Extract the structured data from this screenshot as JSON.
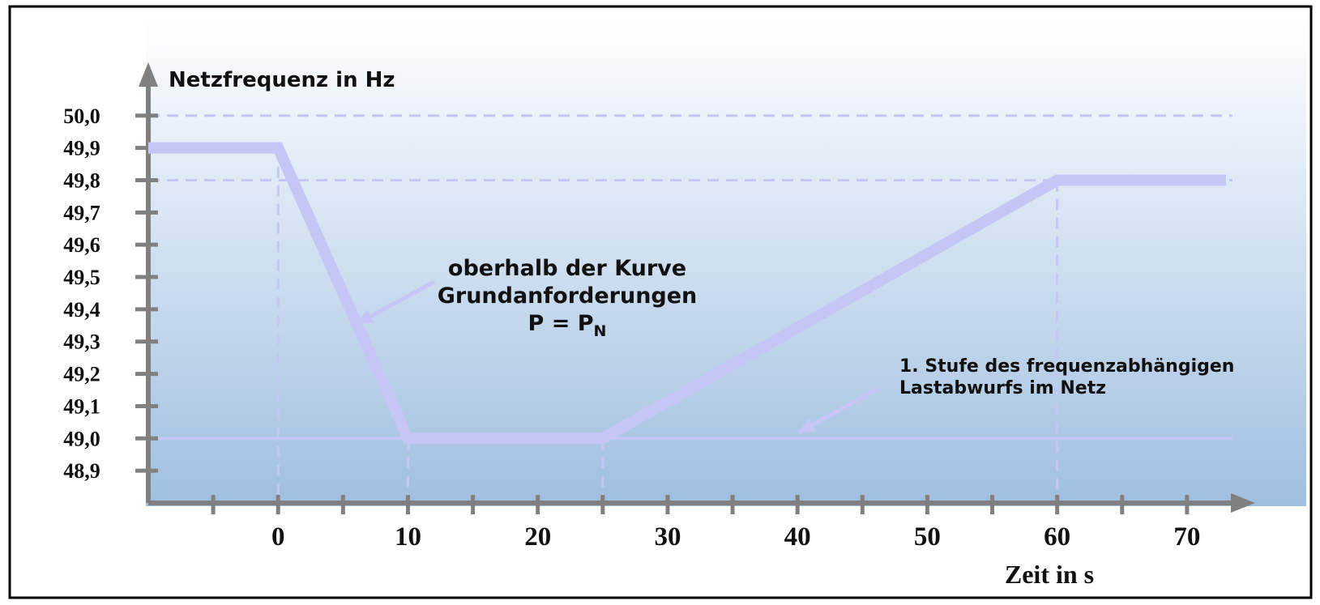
{
  "chart_data": {
    "type": "line",
    "ylabel": "Netzfrequenz in Hz",
    "xlabel": "Zeit in s",
    "x": [
      -10,
      0,
      10,
      25,
      60,
      73
    ],
    "series": [
      {
        "color": "#c6c6f6",
        "values": [
          49.9,
          49.9,
          49.0,
          49.0,
          49.8,
          49.8
        ]
      }
    ],
    "xlim": [
      -10,
      75
    ],
    "ylim": [
      48.8,
      50.15
    ],
    "xticks": [
      0,
      10,
      20,
      30,
      40,
      50,
      60,
      70
    ],
    "xminorticks": [
      -5,
      5,
      15,
      25,
      35,
      45,
      55,
      65
    ],
    "yticks": [
      {
        "value": 48.9,
        "label": "48,9"
      },
      {
        "value": 49.0,
        "label": "49,0"
      },
      {
        "value": 49.1,
        "label": "49,1"
      },
      {
        "value": 49.2,
        "label": "49,2"
      },
      {
        "value": 49.3,
        "label": "49,3"
      },
      {
        "value": 49.4,
        "label": "49,4"
      },
      {
        "value": 49.5,
        "label": "49,5"
      },
      {
        "value": 49.6,
        "label": "49,6"
      },
      {
        "value": 49.7,
        "label": "49,7"
      },
      {
        "value": 49.8,
        "label": "49,8"
      },
      {
        "value": 49.9,
        "label": "49,9"
      },
      {
        "value": 50.0,
        "label": "50,0"
      }
    ],
    "hlines": [
      {
        "value": 50.0,
        "style": "dashed"
      },
      {
        "value": 49.8,
        "style": "dashed"
      },
      {
        "value": 49.0,
        "style": "solid"
      }
    ],
    "droplines": true,
    "annotations": [
      {
        "lines": [
          "oberhalb der Kurve",
          "Grundanforderungen"
        ],
        "formula": {
          "text": "P = P",
          "subscript": "N"
        }
      },
      {
        "lines": [
          "1. Stufe des frequenzabhängigen",
          "Lastabwurfs im Netz"
        ]
      }
    ]
  }
}
